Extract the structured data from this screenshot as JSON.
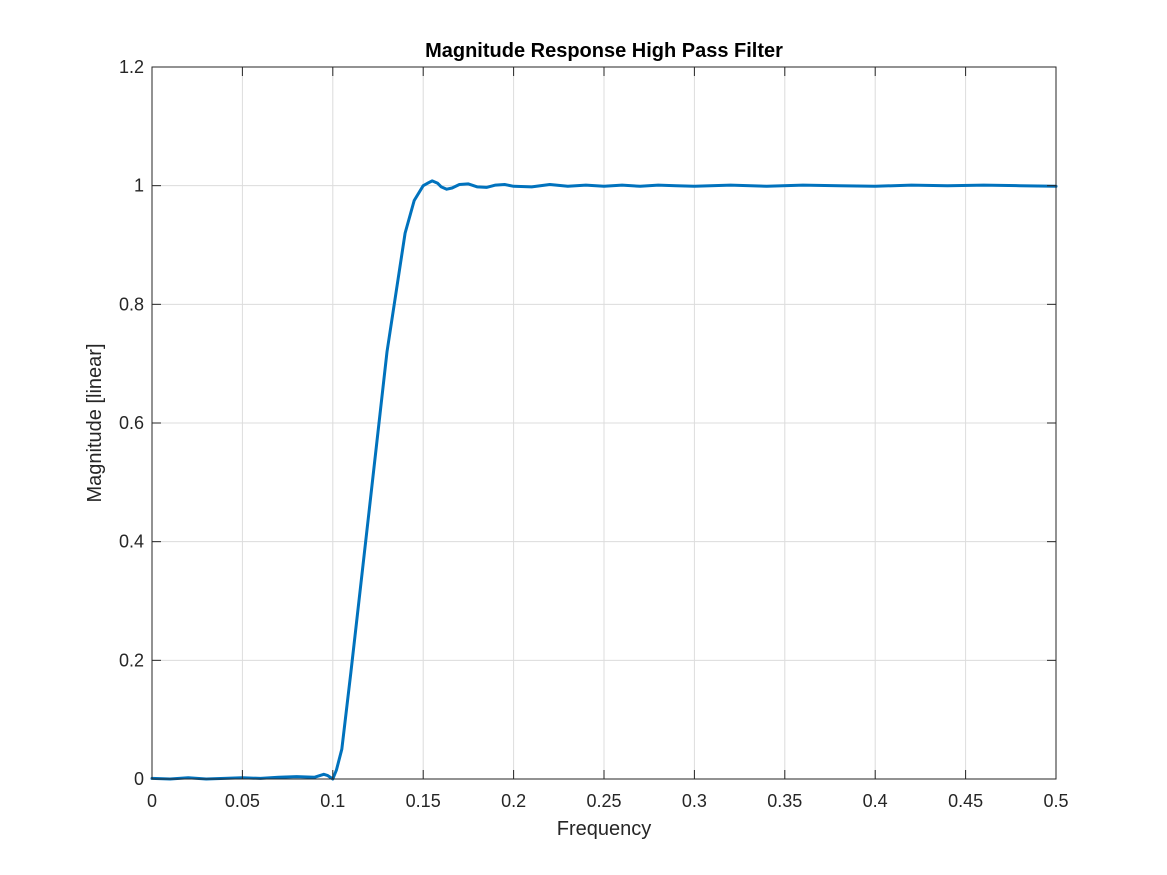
{
  "chart_data": {
    "type": "line",
    "title": "Magnitude Response High Pass Filter",
    "xlabel": "Frequency",
    "ylabel": "Magnitude [linear]",
    "xlim": [
      0,
      0.5
    ],
    "ylim": [
      0,
      1.2
    ],
    "grid": true,
    "x_ticks": [
      "0",
      "0.05",
      "0.1",
      "0.15",
      "0.2",
      "0.25",
      "0.3",
      "0.35",
      "0.4",
      "0.45",
      "0.5"
    ],
    "y_ticks": [
      "0",
      "0.2",
      "0.4",
      "0.6",
      "0.8",
      "1",
      "1.2"
    ],
    "series": [
      {
        "color": "#0072BD",
        "x": [
          0,
          0.01,
          0.02,
          0.03,
          0.04,
          0.05,
          0.06,
          0.07,
          0.08,
          0.09,
          0.095,
          0.097,
          0.099,
          0.1,
          0.102,
          0.105,
          0.11,
          0.12,
          0.13,
          0.14,
          0.145,
          0.15,
          0.153,
          0.155,
          0.158,
          0.16,
          0.163,
          0.166,
          0.17,
          0.175,
          0.18,
          0.185,
          0.19,
          0.195,
          0.2,
          0.21,
          0.22,
          0.23,
          0.24,
          0.25,
          0.26,
          0.27,
          0.28,
          0.29,
          0.3,
          0.32,
          0.34,
          0.36,
          0.38,
          0.4,
          0.42,
          0.44,
          0.46,
          0.48,
          0.5
        ],
        "y": [
          0.001,
          0.0,
          0.002,
          0.0,
          0.001,
          0.002,
          0.001,
          0.003,
          0.004,
          0.003,
          0.008,
          0.006,
          0.002,
          0.0,
          0.015,
          0.05,
          0.18,
          0.45,
          0.72,
          0.92,
          0.975,
          1.0,
          1.005,
          1.008,
          1.004,
          0.998,
          0.994,
          0.996,
          1.002,
          1.003,
          0.998,
          0.997,
          1.001,
          1.002,
          0.999,
          0.998,
          1.002,
          0.999,
          1.001,
          0.999,
          1.001,
          0.999,
          1.001,
          1.0,
          0.999,
          1.001,
          0.999,
          1.001,
          1.0,
          0.999,
          1.001,
          1.0,
          1.001,
          1.0,
          0.999
        ]
      }
    ]
  }
}
